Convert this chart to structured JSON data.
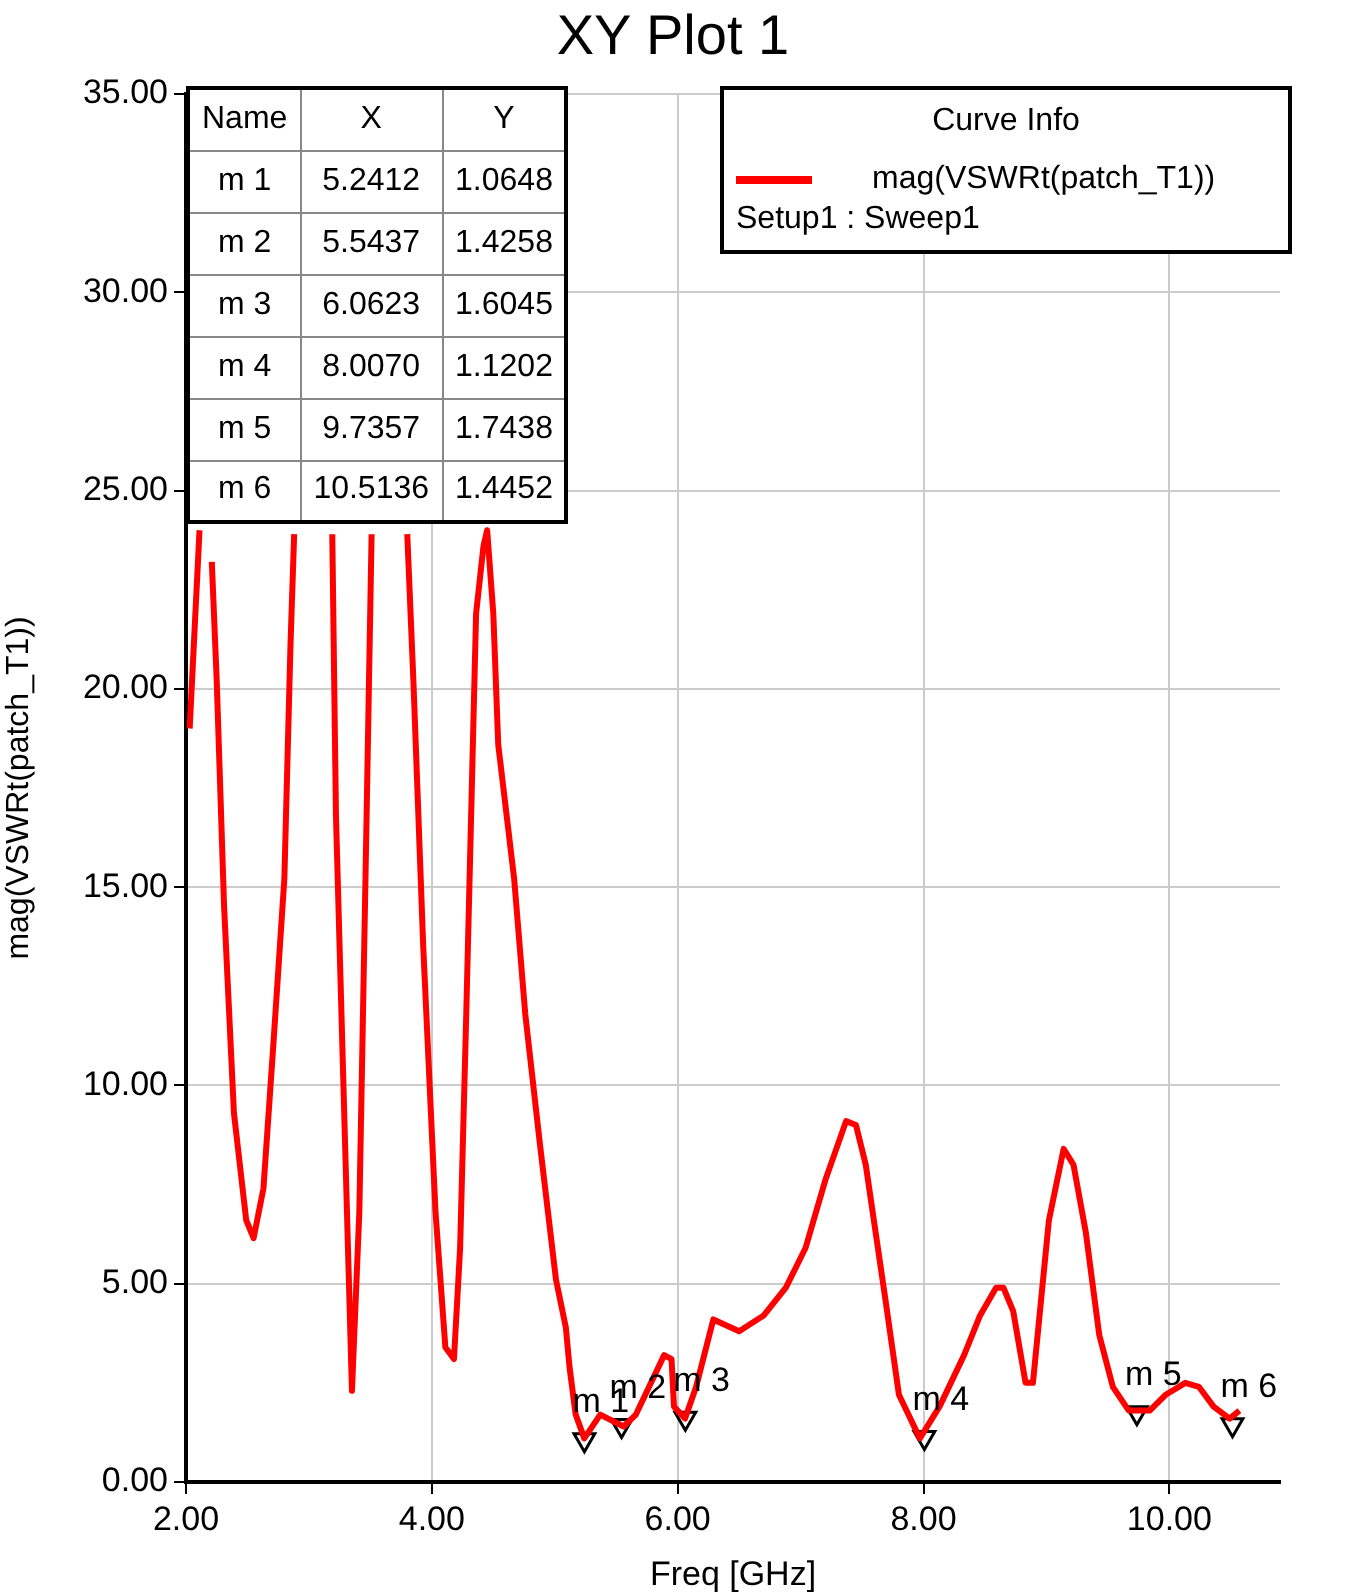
{
  "chart_data": {
    "type": "line",
    "title": "XY Plot 1",
    "xlabel": "Freq [GHz]",
    "ylabel": "mag(VSWRt(patch_T1))",
    "legend_title": "Curve Info",
    "legend": "top right",
    "grid": true,
    "annotations": [
      "Setup1 : Sweep1",
      "Name",
      "X",
      "Y",
      "5.2412",
      "1.0648",
      "5.5437",
      "1.4258",
      "6.0623",
      "1.6045",
      "8.0070",
      "1.1202",
      "9.7357",
      "1.7438",
      "10.5136",
      "1.4452"
    ],
    "xlim": [
      2,
      10.9
    ],
    "xticks": [
      {
        "value": 2,
        "label": "2.00"
      },
      {
        "value": 4,
        "label": "4.00"
      },
      {
        "value": 6,
        "label": "6.00"
      },
      {
        "value": 8,
        "label": "8.00"
      },
      {
        "value": 10,
        "label": "10.00"
      }
    ],
    "ylim": [
      0,
      35
    ],
    "yticks": [
      {
        "value": 0,
        "label": "0.00"
      },
      {
        "value": 5,
        "label": "5.00"
      },
      {
        "value": 10,
        "label": "10.00"
      },
      {
        "value": 15,
        "label": "15.00"
      },
      {
        "value": 20,
        "label": "20.00"
      },
      {
        "value": 25,
        "label": "25.00"
      },
      {
        "value": 30,
        "label": "30.00"
      },
      {
        "value": 35,
        "label": "35.00"
      }
    ],
    "series": [
      {
        "name": "mag(VSWRt(patch_T1))",
        "color": "#ff0000",
        "line_style": "solid",
        "marker": "none",
        "x": [
          2.03,
          2.11,
          2.15,
          2.21,
          2.25,
          2.31,
          2.39,
          2.49,
          2.55,
          2.63,
          2.71,
          2.8,
          2.85,
          2.88,
          3.0,
          3.19,
          3.22,
          3.28,
          3.35,
          3.41,
          3.46,
          3.51,
          3.65,
          3.8,
          3.85,
          3.93,
          4.03,
          4.11,
          4.18,
          4.23,
          4.28,
          4.36,
          4.42,
          4.45,
          4.5,
          4.54,
          4.67,
          4.76,
          4.88,
          5.01,
          5.09,
          5.12,
          5.17,
          5.24,
          5.37,
          5.56,
          5.66,
          5.89,
          5.95,
          5.97,
          6.06,
          6.15,
          6.29,
          6.5,
          6.7,
          6.88,
          7.04,
          7.2,
          7.37,
          7.45,
          7.53,
          7.61,
          7.69,
          7.8,
          7.97,
          8.13,
          8.33,
          8.46,
          8.59,
          8.65,
          8.73,
          8.83,
          8.89,
          9.02,
          9.14,
          9.22,
          9.32,
          9.43,
          9.54,
          9.67,
          9.84,
          9.97,
          10.13,
          10.24,
          10.36,
          10.49,
          10.57
        ],
        "values": [
          19,
          24,
          null,
          23.2,
          20.2,
          14.5,
          9.3,
          6.6,
          6.15,
          7.4,
          11,
          15.2,
          21.1,
          23.9,
          null,
          23.9,
          16.8,
          10.1,
          2.3,
          6.8,
          15.2,
          23.9,
          null,
          23.9,
          20.2,
          13.5,
          6.8,
          3.4,
          3.1,
          5.9,
          11.8,
          21.9,
          23.6,
          24.0,
          21.9,
          18.6,
          15.2,
          11.8,
          8.5,
          5.1,
          3.9,
          2.9,
          1.7,
          1.1,
          1.7,
          1.4,
          1.7,
          3.2,
          3.1,
          1.9,
          1.6,
          2.4,
          4.1,
          3.8,
          4.2,
          4.9,
          5.9,
          7.6,
          9.1,
          9.0,
          8.0,
          6.3,
          4.6,
          2.2,
          1.1,
          1.9,
          3.2,
          4.2,
          4.9,
          4.9,
          4.3,
          2.5,
          2.5,
          6.6,
          8.4,
          8.0,
          6.3,
          3.7,
          2.4,
          1.8,
          1.8,
          2.2,
          2.5,
          2.4,
          1.9,
          1.6,
          1.8
        ]
      },
      {
        "type": "scatter",
        "color": "#000000",
        "marker": "triangle",
        "x": [
          5.2412,
          5.5437,
          6.0623,
          8.007,
          9.7357,
          10.5136
        ],
        "values": [
          1.0648,
          1.4258,
          1.6045,
          1.1202,
          1.7438,
          1.4452
        ],
        "value_labels": [
          "m 1",
          "m 2",
          "m 3",
          "m 4",
          "m 5",
          "m 6"
        ]
      }
    ]
  }
}
